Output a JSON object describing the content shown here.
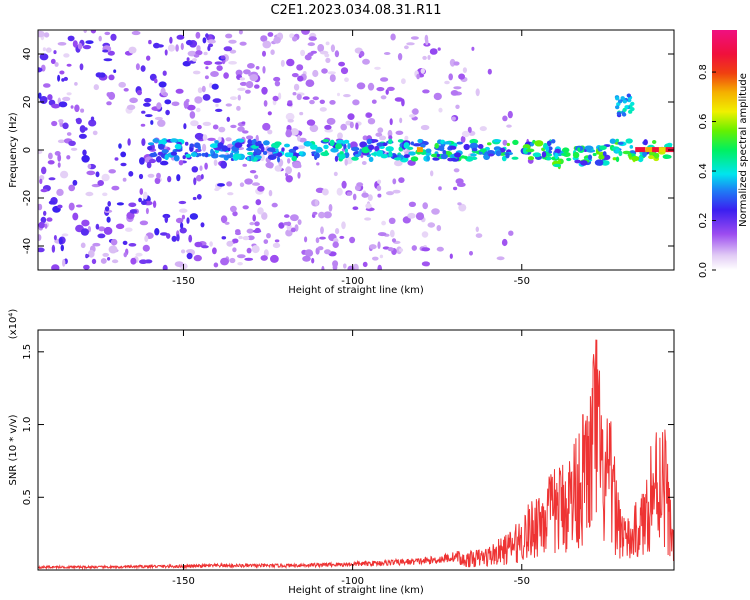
{
  "chart_data": [
    {
      "type": "heatmap",
      "title": "C2E1.2023.034.08.31.R11",
      "xlabel": "Height of straight line (km)",
      "ylabel": "Frequency (Hz)",
      "xlim": [
        -193,
        -5
      ],
      "ylim": [
        -50,
        50
      ],
      "x_ticks": [
        "-150",
        "-100",
        "-50"
      ],
      "y_ticks": [
        "40",
        "20",
        "0",
        "-20",
        "-40"
      ],
      "colorbar": {
        "label": "Normalized spectral amplitude",
        "range": [
          0,
          0.97
        ],
        "ticks": [
          "0.0",
          "0.2",
          "0.4",
          "0.6",
          "0.8"
        ],
        "colormap": "rainbow (light purple → blue → cyan → green → yellow → red → magenta)"
      },
      "features": [
        {
          "name": "",
          "x_range": [
            -193,
            -5
          ],
          "y_center": 0,
          "amplitude_range": [
            0.2,
            0.95
          ]
        }
      ]
    },
    {
      "type": "line",
      "title": "",
      "xlabel": "Height of straight line (km)",
      "ylabel": "SNR (10 * v/v)",
      "y_multiplier": "(x10⁴)",
      "xlim": [
        -193,
        -5
      ],
      "ylim": [
        0,
        1.65
      ],
      "x_ticks": [
        "-150",
        "-100",
        "-50"
      ],
      "y_ticks": [
        "0.5",
        "1.0",
        "1.5"
      ],
      "series": [
        {
          "name": "",
          "color": "#ee3333",
          "x": [
            -193,
            -180,
            -170,
            -160,
            -150,
            -140,
            -130,
            -120,
            -110,
            -100,
            -90,
            -80,
            -75,
            -70,
            -65,
            -60,
            -55,
            -52,
            -50,
            -47,
            -45,
            -42,
            -40,
            -38,
            -36,
            -34,
            -32,
            -30,
            -28,
            -26,
            -24,
            -22,
            -20,
            -18,
            -16,
            -14,
            -12,
            -10,
            -8,
            -6,
            -5
          ],
          "y": [
            0.02,
            0.02,
            0.02,
            0.025,
            0.025,
            0.03,
            0.03,
            0.03,
            0.035,
            0.04,
            0.05,
            0.06,
            0.07,
            0.09,
            0.12,
            0.15,
            0.22,
            0.28,
            0.35,
            0.45,
            0.55,
            0.6,
            0.65,
            0.7,
            0.75,
            0.9,
            1.0,
            1.1,
            1.65,
            0.9,
            1.0,
            0.6,
            0.4,
            0.3,
            0.45,
            0.5,
            0.85,
            0.95,
            1.05,
            0.45,
            0.3
          ]
        }
      ]
    }
  ]
}
